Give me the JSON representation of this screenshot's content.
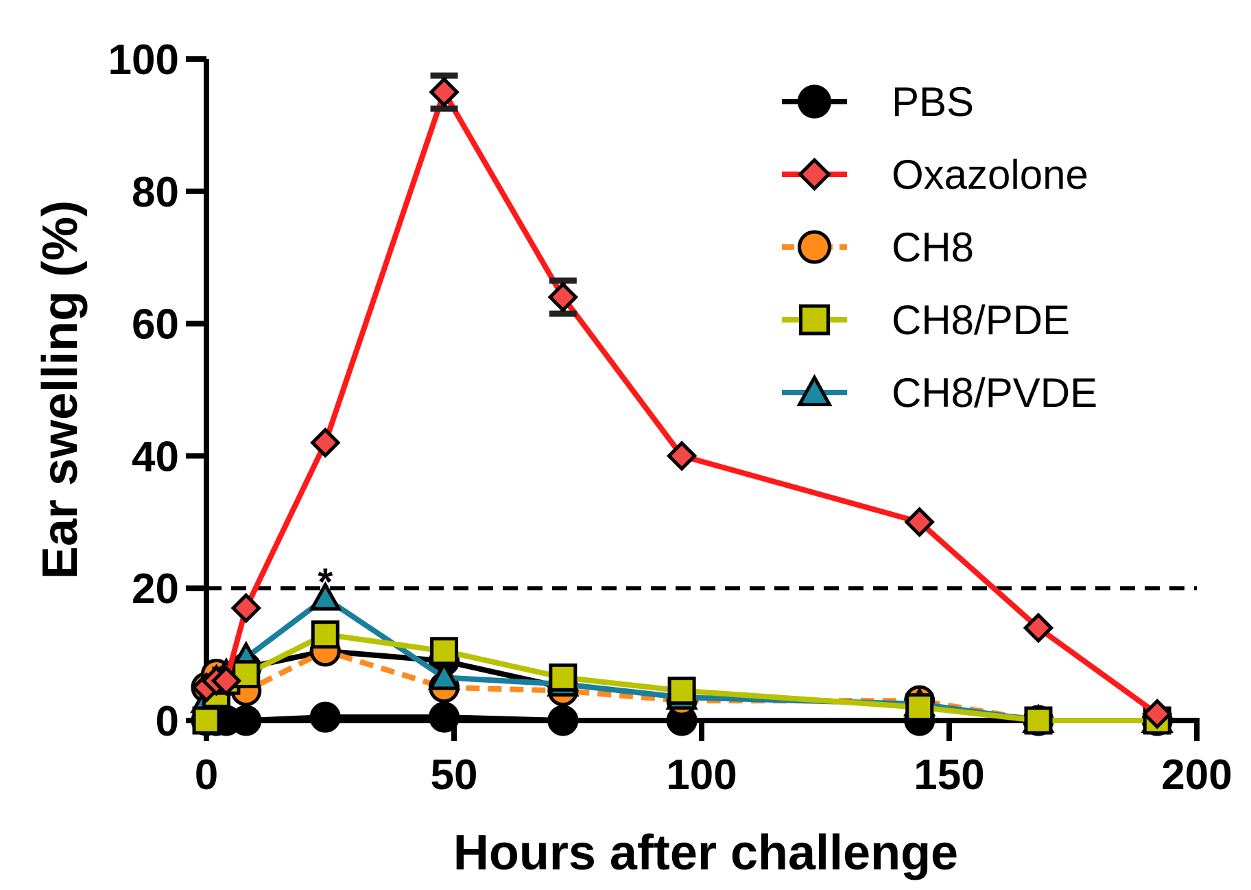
{
  "chart_data": {
    "type": "line",
    "title": "",
    "xlabel": "Hours after challenge",
    "ylabel": "Ear swelling (%)",
    "xlim": [
      0,
      200
    ],
    "ylim": [
      0,
      100
    ],
    "xticks": [
      0,
      50,
      100,
      150,
      200
    ],
    "yticks": [
      0,
      20,
      40,
      60,
      80,
      100
    ],
    "grid": false,
    "legend_position": "top-right",
    "reference_line": {
      "y": 20,
      "style": "dashed",
      "color": "#000000"
    },
    "annotations": [
      {
        "text": "*",
        "x": 24,
        "y": 20
      }
    ],
    "series": [
      {
        "name": "PBS",
        "marker": "circle",
        "color": "#000000",
        "marker_fill": "#000000",
        "line_style": "solid",
        "x": [
          0,
          2,
          4,
          8,
          24,
          48,
          72,
          96,
          144,
          168,
          192
        ],
        "y": [
          0,
          0,
          0,
          0,
          0.5,
          0.5,
          0,
          0,
          0,
          0,
          0
        ]
      },
      {
        "name": "Oxazolone",
        "marker": "diamond",
        "color": "#ff1a1a",
        "marker_fill": "#f44848",
        "line_style": "solid",
        "x": [
          0,
          2,
          4,
          8,
          24,
          48,
          72,
          96,
          144,
          168,
          192
        ],
        "y": [
          5,
          6,
          6,
          17,
          42,
          95,
          64,
          40,
          30,
          14,
          1
        ],
        "error": [
          0,
          0,
          0,
          0,
          0,
          2.5,
          2.5,
          0,
          0,
          0,
          0
        ]
      },
      {
        "name": "CH8",
        "marker": "circle",
        "color": "#ff8a1f",
        "marker_fill": "#ff8c1a",
        "line_style": "dashed",
        "x": [
          0,
          2,
          4,
          8,
          24,
          48,
          72,
          96,
          144,
          168,
          192
        ],
        "y": [
          5,
          7,
          6,
          4.5,
          10.5,
          5,
          4.5,
          3,
          3,
          0,
          0
        ]
      },
      {
        "name": "CH8/PDE",
        "marker": "square",
        "color": "#b8c200",
        "marker_fill": "#c2c700",
        "line_style": "solid",
        "x": [
          0,
          2,
          4,
          8,
          24,
          48,
          72,
          96,
          144,
          168,
          192
        ],
        "y": [
          0,
          4,
          6,
          7,
          13,
          10.5,
          6.5,
          4.5,
          2,
          0,
          0
        ]
      },
      {
        "name": "CH8/PVDE",
        "marker": "triangle",
        "color": "#1a7f9c",
        "marker_fill": "#1a8aa3",
        "line_style": "solid",
        "x": [
          0,
          2,
          4,
          8,
          24,
          48,
          72,
          96,
          144,
          168,
          192
        ],
        "y": [
          3,
          6,
          7,
          9.5,
          18.5,
          6.5,
          5.5,
          3.5,
          2.5,
          0,
          0
        ]
      },
      {
        "name": "PBS-2",
        "hidden_in_legend": true,
        "marker": "circle",
        "color": "#000000",
        "marker_fill": "#000000",
        "line_style": "solid",
        "x": [
          0,
          8,
          24,
          48,
          72
        ],
        "y": [
          5,
          8,
          10.5,
          9,
          5
        ]
      }
    ]
  }
}
